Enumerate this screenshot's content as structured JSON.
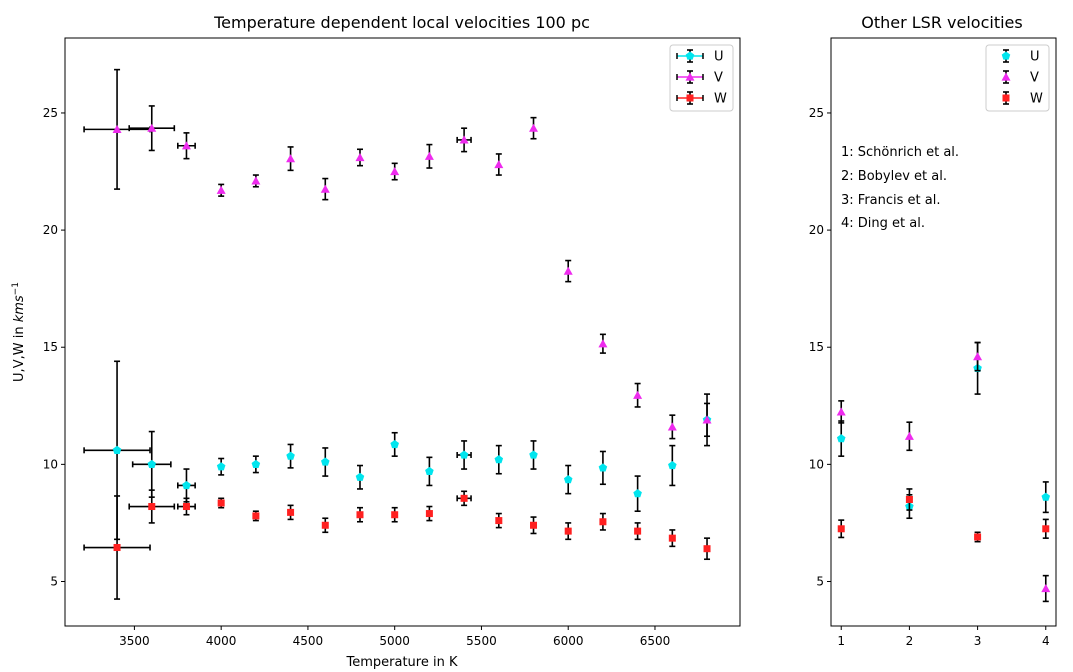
{
  "chart_data": [
    {
      "type": "scatter",
      "title": "Temperature dependent local velocities 100 pc",
      "xlabel": "Temperature in K",
      "ylabel_prefix": "U,V,W in ",
      "ylabel_unit": "kms",
      "ylabel_sup": "−1",
      "xlim": [
        3100,
        6990
      ],
      "ylim": [
        3.1,
        28.2
      ],
      "xticks": [
        3500,
        4000,
        4500,
        5000,
        5500,
        6000,
        6500
      ],
      "yticks": [
        5,
        10,
        15,
        20,
        25
      ],
      "legend_placement": "top-right",
      "series": [
        {
          "name": "U",
          "color": "#00e5ee",
          "marker": "pentagon",
          "points": [
            {
              "x": 3400,
              "y": 10.6,
              "yerr": 3.8,
              "xerr": 190
            },
            {
              "x": 3600,
              "y": 10.0,
              "yerr": 1.4,
              "xerr": 110
            },
            {
              "x": 3800,
              "y": 9.1,
              "yerr": 0.7,
              "xerr": 50
            },
            {
              "x": 4000,
              "y": 9.9,
              "yerr": 0.35
            },
            {
              "x": 4200,
              "y": 10.0,
              "yerr": 0.35
            },
            {
              "x": 4400,
              "y": 10.35,
              "yerr": 0.5
            },
            {
              "x": 4600,
              "y": 10.1,
              "yerr": 0.6
            },
            {
              "x": 4800,
              "y": 9.45,
              "yerr": 0.5
            },
            {
              "x": 5000,
              "y": 10.85,
              "yerr": 0.5
            },
            {
              "x": 5200,
              "y": 9.7,
              "yerr": 0.6
            },
            {
              "x": 5400,
              "y": 10.4,
              "yerr": 0.6,
              "xerr": 40
            },
            {
              "x": 5600,
              "y": 10.2,
              "yerr": 0.6
            },
            {
              "x": 5800,
              "y": 10.4,
              "yerr": 0.6
            },
            {
              "x": 6000,
              "y": 9.35,
              "yerr": 0.6
            },
            {
              "x": 6200,
              "y": 9.85,
              "yerr": 0.7
            },
            {
              "x": 6400,
              "y": 8.75,
              "yerr": 0.75
            },
            {
              "x": 6600,
              "y": 9.95,
              "yerr": 0.85
            },
            {
              "x": 6800,
              "y": 11.9,
              "yerr": 1.1
            }
          ]
        },
        {
          "name": "V",
          "color": "#ee2bee",
          "marker": "triangle",
          "points": [
            {
              "x": 3400,
              "y": 24.3,
              "yerr": 2.55,
              "xerr": 190
            },
            {
              "x": 3600,
              "y": 24.35,
              "yerr": 0.95,
              "xerr": 130
            },
            {
              "x": 3800,
              "y": 23.6,
              "yerr": 0.55,
              "xerr": 50
            },
            {
              "x": 4000,
              "y": 21.7,
              "yerr": 0.25
            },
            {
              "x": 4200,
              "y": 22.1,
              "yerr": 0.25
            },
            {
              "x": 4400,
              "y": 23.05,
              "yerr": 0.5
            },
            {
              "x": 4600,
              "y": 21.75,
              "yerr": 0.45
            },
            {
              "x": 4800,
              "y": 23.1,
              "yerr": 0.35
            },
            {
              "x": 5000,
              "y": 22.5,
              "yerr": 0.35
            },
            {
              "x": 5200,
              "y": 23.15,
              "yerr": 0.5
            },
            {
              "x": 5400,
              "y": 23.85,
              "yerr": 0.5,
              "xerr": 40
            },
            {
              "x": 5600,
              "y": 22.8,
              "yerr": 0.45
            },
            {
              "x": 5800,
              "y": 24.35,
              "yerr": 0.45
            },
            {
              "x": 6000,
              "y": 18.25,
              "yerr": 0.45
            },
            {
              "x": 6200,
              "y": 15.15,
              "yerr": 0.4
            },
            {
              "x": 6400,
              "y": 12.95,
              "yerr": 0.5
            },
            {
              "x": 6600,
              "y": 11.6,
              "yerr": 0.5
            },
            {
              "x": 6800,
              "y": 11.9,
              "yerr": 0.7
            }
          ]
        },
        {
          "name": "W",
          "color": "#ff2020",
          "marker": "square",
          "points": [
            {
              "x": 3400,
              "y": 6.45,
              "yerr": 2.2,
              "xerr": 190
            },
            {
              "x": 3600,
              "y": 8.2,
              "yerr": 0.7,
              "xerr": 130
            },
            {
              "x": 3800,
              "y": 8.2,
              "yerr": 0.35,
              "xerr": 50
            },
            {
              "x": 4000,
              "y": 8.35,
              "yerr": 0.2
            },
            {
              "x": 4200,
              "y": 7.8,
              "yerr": 0.2
            },
            {
              "x": 4400,
              "y": 7.95,
              "yerr": 0.3
            },
            {
              "x": 4600,
              "y": 7.4,
              "yerr": 0.3
            },
            {
              "x": 4800,
              "y": 7.85,
              "yerr": 0.3
            },
            {
              "x": 5000,
              "y": 7.85,
              "yerr": 0.3
            },
            {
              "x": 5200,
              "y": 7.9,
              "yerr": 0.3
            },
            {
              "x": 5400,
              "y": 8.55,
              "yerr": 0.3,
              "xerr": 40
            },
            {
              "x": 5600,
              "y": 7.6,
              "yerr": 0.3
            },
            {
              "x": 5800,
              "y": 7.4,
              "yerr": 0.35
            },
            {
              "x": 6000,
              "y": 7.15,
              "yerr": 0.35
            },
            {
              "x": 6200,
              "y": 7.55,
              "yerr": 0.35
            },
            {
              "x": 6400,
              "y": 7.15,
              "yerr": 0.35
            },
            {
              "x": 6600,
              "y": 6.85,
              "yerr": 0.35
            },
            {
              "x": 6800,
              "y": 6.4,
              "yerr": 0.45
            }
          ]
        }
      ]
    },
    {
      "type": "scatter",
      "title": "Other LSR velocities",
      "xlim": [
        0.85,
        4.15
      ],
      "ylim": [
        3.1,
        28.2
      ],
      "xticks": [
        1,
        2,
        3,
        4
      ],
      "yticks": [
        5,
        10,
        15,
        20,
        25
      ],
      "legend_placement": "top-right",
      "annotations": [
        "1: Schönrich et al.",
        "2: Bobylev et al.",
        "3: Francis et al.",
        "4: Ding et al."
      ],
      "series": [
        {
          "name": "U",
          "color": "#00e5ee",
          "marker": "pentagon",
          "points": [
            {
              "x": 1,
              "y": 11.1,
              "yerr": 0.75
            },
            {
              "x": 2,
              "y": 8.2,
              "yerr": 0.5
            },
            {
              "x": 3,
              "y": 14.1,
              "yerr": 1.1
            },
            {
              "x": 4,
              "y": 8.6,
              "yerr": 0.65
            }
          ]
        },
        {
          "name": "V",
          "color": "#ee2bee",
          "marker": "triangle",
          "points": [
            {
              "x": 1,
              "y": 12.24,
              "yerr": 0.47
            },
            {
              "x": 2,
              "y": 11.2,
              "yerr": 0.6
            },
            {
              "x": 3,
              "y": 14.6,
              "yerr": 0.6
            },
            {
              "x": 4,
              "y": 4.7,
              "yerr": 0.55
            }
          ]
        },
        {
          "name": "W",
          "color": "#ff2020",
          "marker": "square",
          "points": [
            {
              "x": 1,
              "y": 7.25,
              "yerr": 0.37
            },
            {
              "x": 2,
              "y": 8.5,
              "yerr": 0.45
            },
            {
              "x": 3,
              "y": 6.9,
              "yerr": 0.2
            },
            {
              "x": 4,
              "y": 7.25,
              "yerr": 0.4
            }
          ]
        }
      ]
    }
  ]
}
